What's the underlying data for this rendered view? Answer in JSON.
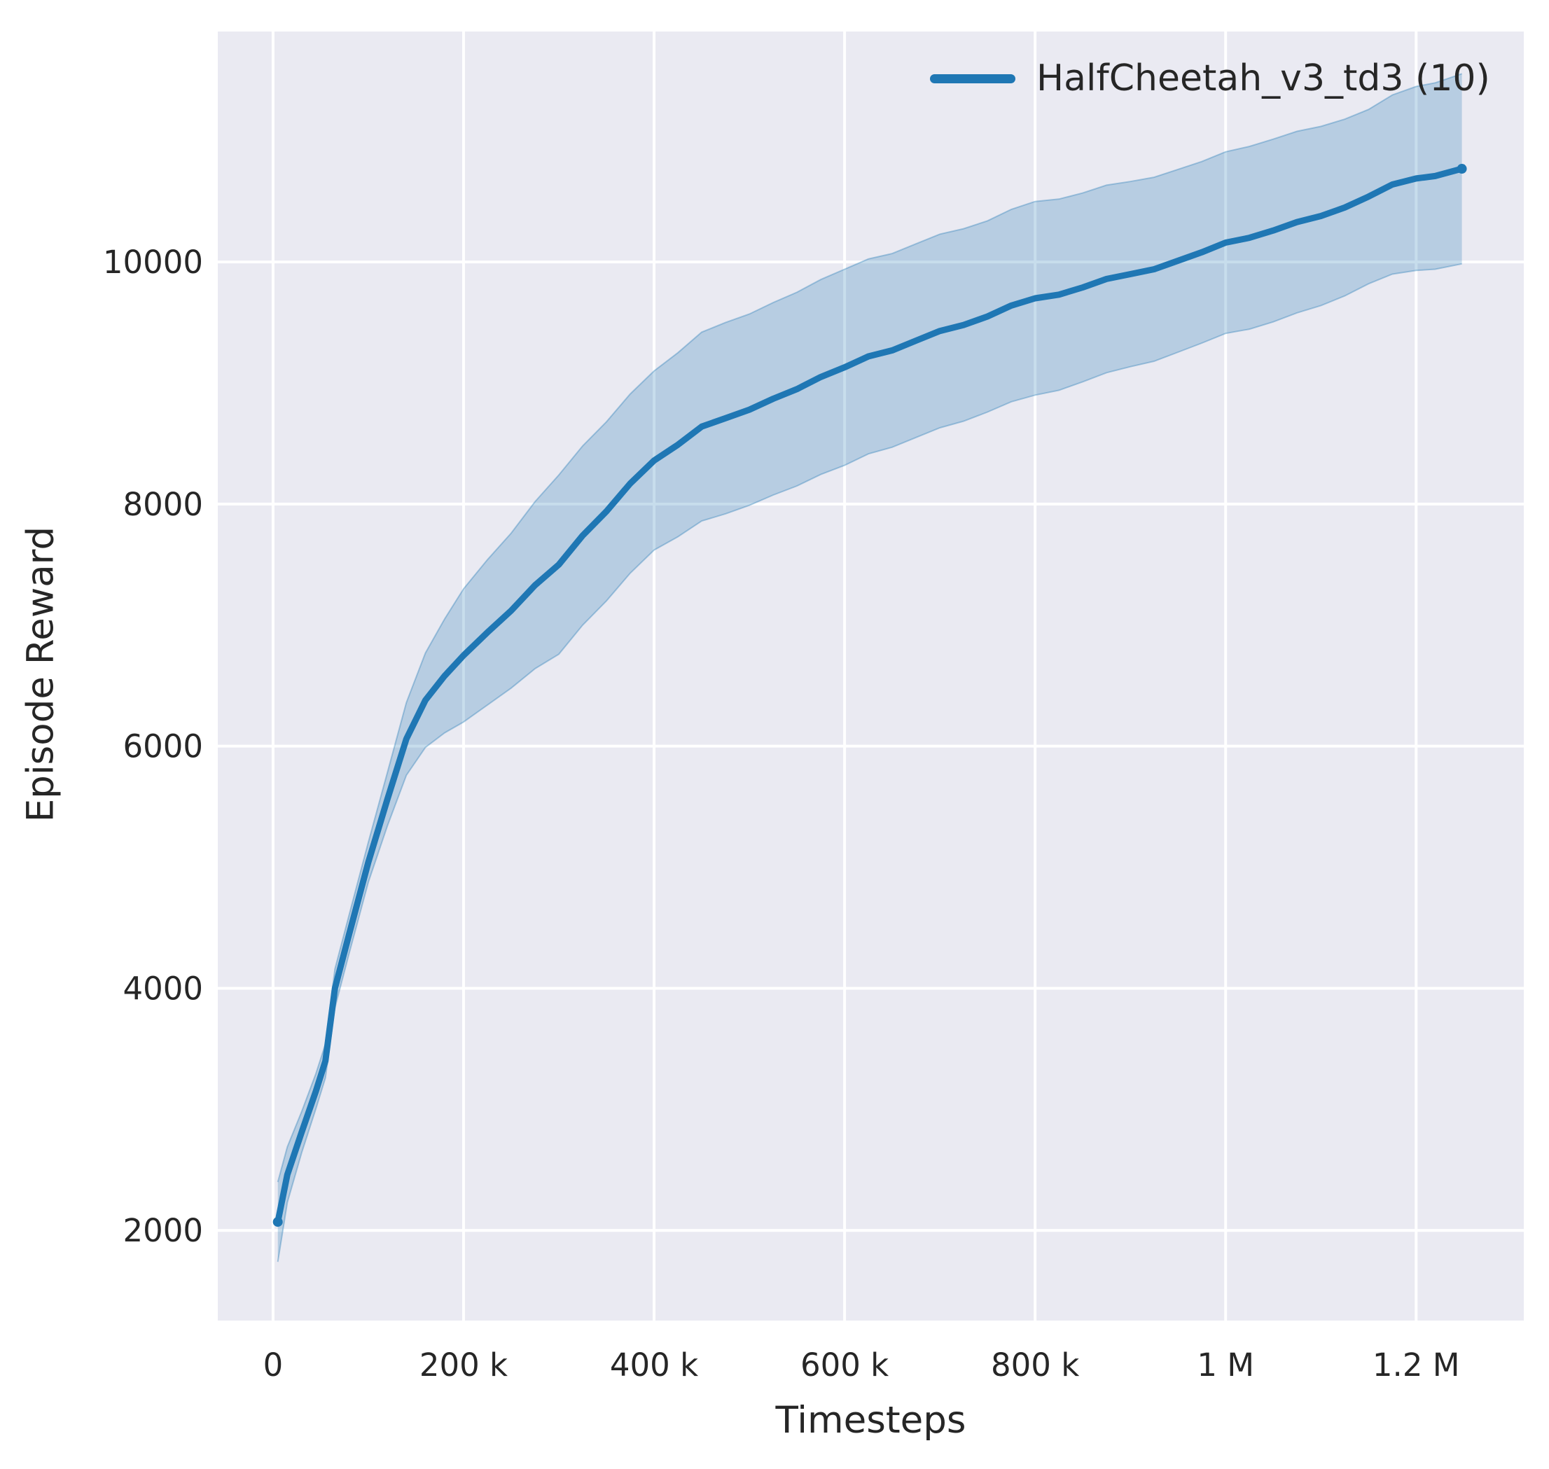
{
  "chart_data": {
    "type": "line",
    "title": "",
    "xlabel": "Timesteps",
    "ylabel": "Episode Reward",
    "grid": true,
    "legend": {
      "position": "upper right",
      "frame": false,
      "entries": [
        {
          "label": "HalfCheetah_v3_td3 (10)",
          "color": "#1f77b4"
        }
      ]
    },
    "x_ticks": [
      {
        "value": 0,
        "label": "0"
      },
      {
        "value": 200000,
        "label": "200 k"
      },
      {
        "value": 400000,
        "label": "400 k"
      },
      {
        "value": 600000,
        "label": "600 k"
      },
      {
        "value": 800000,
        "label": "800 k"
      },
      {
        "value": 1000000,
        "label": "1 M"
      },
      {
        "value": 1200000,
        "label": "1.2 M"
      }
    ],
    "y_ticks": [
      {
        "value": 2000,
        "label": "2000"
      },
      {
        "value": 4000,
        "label": "4000"
      },
      {
        "value": 6000,
        "label": "6000"
      },
      {
        "value": 8000,
        "label": "8000"
      },
      {
        "value": 10000,
        "label": "10000"
      }
    ],
    "xlim": [
      -58000,
      1313000
    ],
    "ylim": [
      1255,
      11904
    ],
    "colors": {
      "axes_background": "#eaeaf2",
      "gridline": "#ffffff",
      "text": "#262626"
    },
    "series": [
      {
        "name": "HalfCheetah_v3_td3 (10)",
        "color": "#1f77b4",
        "band_alpha": 0.25,
        "band_edge_alpha": 0.35,
        "x": [
          5000,
          15000,
          30000,
          45000,
          55000,
          65000,
          80000,
          100000,
          120000,
          140000,
          160000,
          180000,
          200000,
          225000,
          250000,
          275000,
          300000,
          325000,
          350000,
          375000,
          400000,
          425000,
          450000,
          475000,
          500000,
          525000,
          550000,
          575000,
          600000,
          625000,
          650000,
          675000,
          700000,
          725000,
          750000,
          775000,
          800000,
          825000,
          850000,
          875000,
          900000,
          925000,
          950000,
          975000,
          1000000,
          1025000,
          1050000,
          1075000,
          1100000,
          1125000,
          1150000,
          1175000,
          1200000,
          1220000,
          1248000
        ],
        "mean": [
          2070,
          2460,
          2810,
          3150,
          3400,
          4000,
          4450,
          5040,
          5560,
          6060,
          6380,
          6580,
          6750,
          6940,
          7120,
          7330,
          7500,
          7740,
          7940,
          8170,
          8360,
          8490,
          8640,
          8710,
          8780,
          8870,
          8950,
          9050,
          9130,
          9220,
          9270,
          9350,
          9430,
          9480,
          9550,
          9640,
          9700,
          9730,
          9790,
          9860,
          9900,
          9940,
          10010,
          10080,
          10160,
          10200,
          10260,
          10330,
          10380,
          10450,
          10540,
          10640,
          10690,
          10710,
          10770
        ],
        "std": [
          330,
          230,
          170,
          145,
          140,
          160,
          160,
          165,
          220,
          300,
          390,
          470,
          550,
          600,
          640,
          690,
          740,
          740,
          740,
          740,
          740,
          760,
          780,
          790,
          790,
          795,
          800,
          805,
          810,
          805,
          800,
          800,
          800,
          795,
          790,
          795,
          800,
          790,
          780,
          775,
          765,
          760,
          755,
          750,
          750,
          755,
          755,
          750,
          740,
          730,
          720,
          740,
          760,
          770,
          785
        ]
      }
    ]
  }
}
